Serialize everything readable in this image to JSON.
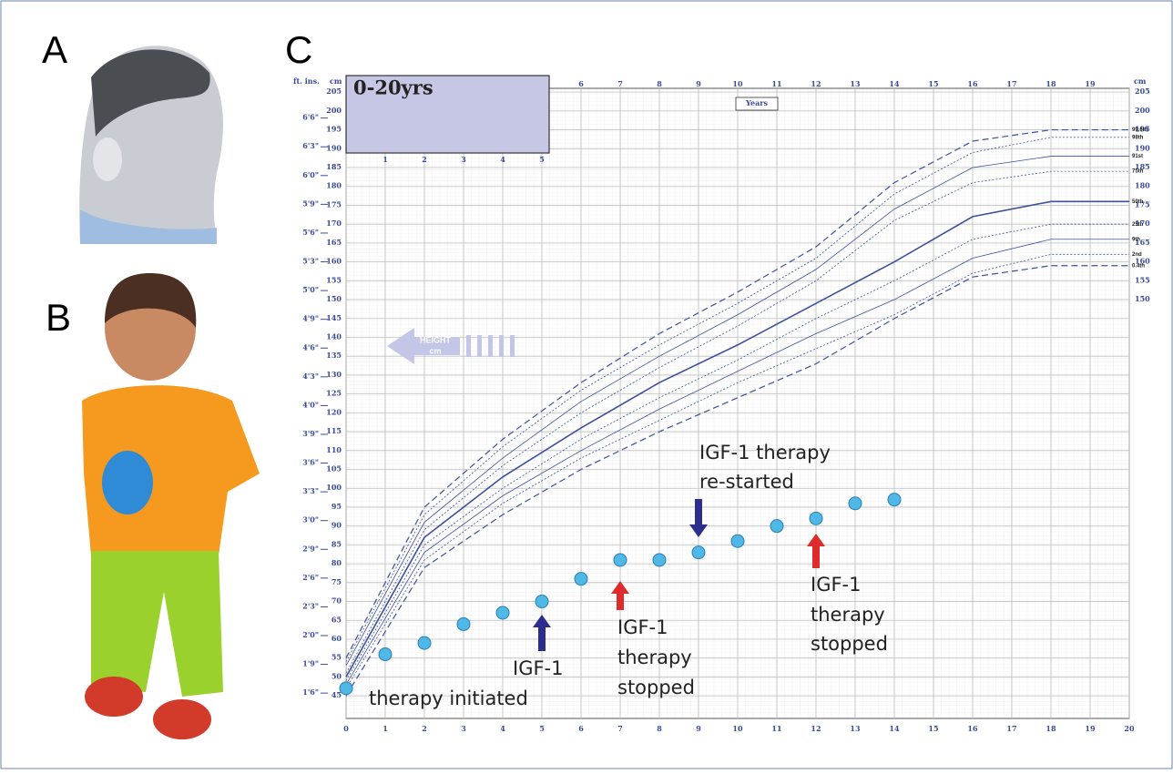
{
  "panels": {
    "a": "A",
    "b": "B",
    "c": "C"
  },
  "chart_data": {
    "type": "scatter",
    "box_title": "0-20yrs",
    "years_label": "Years",
    "cm_header": "cm",
    "ft_header": "ft. ins.",
    "height_arrow": [
      "HEIGHT",
      "cm"
    ],
    "xlim": [
      0,
      20
    ],
    "xticks": [
      0,
      1,
      2,
      3,
      4,
      5,
      6,
      7,
      8,
      9,
      10,
      11,
      12,
      13,
      14,
      15,
      16,
      17,
      18,
      19,
      20
    ],
    "ylim": [
      39,
      206
    ],
    "yticks": [
      45,
      50,
      55,
      60,
      65,
      70,
      75,
      80,
      85,
      90,
      95,
      100,
      105,
      110,
      115,
      120,
      125,
      130,
      135,
      140,
      145,
      150,
      155,
      160,
      165,
      170,
      175,
      180,
      185,
      190,
      195,
      200,
      205
    ],
    "ftticks": [
      {
        "value": 45.72,
        "label": "1'6\""
      },
      {
        "value": 53.34,
        "label": "1'9\""
      },
      {
        "value": 60.96,
        "label": "2'0\""
      },
      {
        "value": 68.58,
        "label": "2'3\""
      },
      {
        "value": 76.2,
        "label": "2'6\""
      },
      {
        "value": 83.82,
        "label": "2'9\""
      },
      {
        "value": 91.44,
        "label": "3'0\""
      },
      {
        "value": 99.06,
        "label": "3'3\""
      },
      {
        "value": 106.68,
        "label": "3'6\""
      },
      {
        "value": 114.3,
        "label": "3'9\""
      },
      {
        "value": 121.92,
        "label": "4'0\""
      },
      {
        "value": 129.54,
        "label": "4'3\""
      },
      {
        "value": 137.16,
        "label": "4'6\""
      },
      {
        "value": 144.78,
        "label": "4'9\""
      },
      {
        "value": 152.4,
        "label": "5'0\""
      },
      {
        "value": 160.02,
        "label": "5'3\""
      },
      {
        "value": 167.64,
        "label": "5'6\""
      },
      {
        "value": 175.26,
        "label": "5'9\""
      },
      {
        "value": 182.88,
        "label": "6'0\""
      },
      {
        "value": 190.5,
        "label": "6'3\""
      },
      {
        "value": 198.12,
        "label": "6'6\""
      }
    ],
    "grid": true,
    "points": {
      "color": "#4fb8e6",
      "x": [
        0,
        1,
        2,
        3,
        4,
        5,
        6,
        7,
        8,
        9,
        10,
        11,
        12,
        13,
        14
      ],
      "values": [
        47,
        56,
        59,
        64,
        67,
        70,
        76,
        81,
        81,
        83,
        86,
        90,
        92,
        96,
        97
      ]
    },
    "curves": {
      "x": [
        0,
        2,
        4,
        6,
        8,
        10,
        12,
        14,
        16,
        18,
        20
      ],
      "color": "#3c4f9a",
      "series": [
        {
          "name": "99.6th",
          "values": [
            55,
            95,
            113,
            128,
            141,
            152,
            164,
            181,
            192,
            195,
            195
          ]
        },
        {
          "name": "98th",
          "values": [
            54,
            93,
            111,
            126,
            138,
            149,
            161,
            178,
            189,
            193,
            193
          ]
        },
        {
          "name": "91st",
          "values": [
            53,
            91,
            108,
            123,
            135,
            146,
            158,
            174,
            185,
            188,
            188
          ]
        },
        {
          "name": "75th",
          "values": [
            51,
            89,
            106,
            120,
            132,
            143,
            155,
            171,
            181,
            184,
            184
          ]
        },
        {
          "name": "50th",
          "values": [
            50,
            87,
            103,
            116,
            128,
            138,
            149,
            160,
            172,
            176,
            176
          ]
        },
        {
          "name": "25th",
          "values": [
            49,
            85,
            100,
            113,
            124,
            134,
            145,
            155,
            166,
            170,
            170
          ]
        },
        {
          "name": "9th",
          "values": [
            48,
            83,
            98,
            110,
            121,
            131,
            141,
            150,
            161,
            166,
            166
          ]
        },
        {
          "name": "2nd",
          "values": [
            47,
            81,
            96,
            108,
            118,
            128,
            137,
            146,
            157,
            162,
            162
          ]
        },
        {
          "name": "0.4th",
          "values": [
            45,
            79,
            93,
            105,
            115,
            124,
            133,
            145,
            156,
            159,
            159
          ]
        }
      ]
    },
    "annotations": [
      {
        "lines": [
          "IGF-1",
          "therapy initiated"
        ],
        "color": "#2b2e8c"
      },
      {
        "lines": [
          "IGF-1",
          "therapy",
          "stopped"
        ],
        "color": "#e02b2b"
      },
      {
        "lines": [
          "IGF-1 therapy",
          "re-started"
        ],
        "color": "#2b2e8c"
      },
      {
        "lines": [
          "IGF-1",
          "therapy",
          "stopped"
        ],
        "color": "#e02b2b"
      }
    ]
  }
}
